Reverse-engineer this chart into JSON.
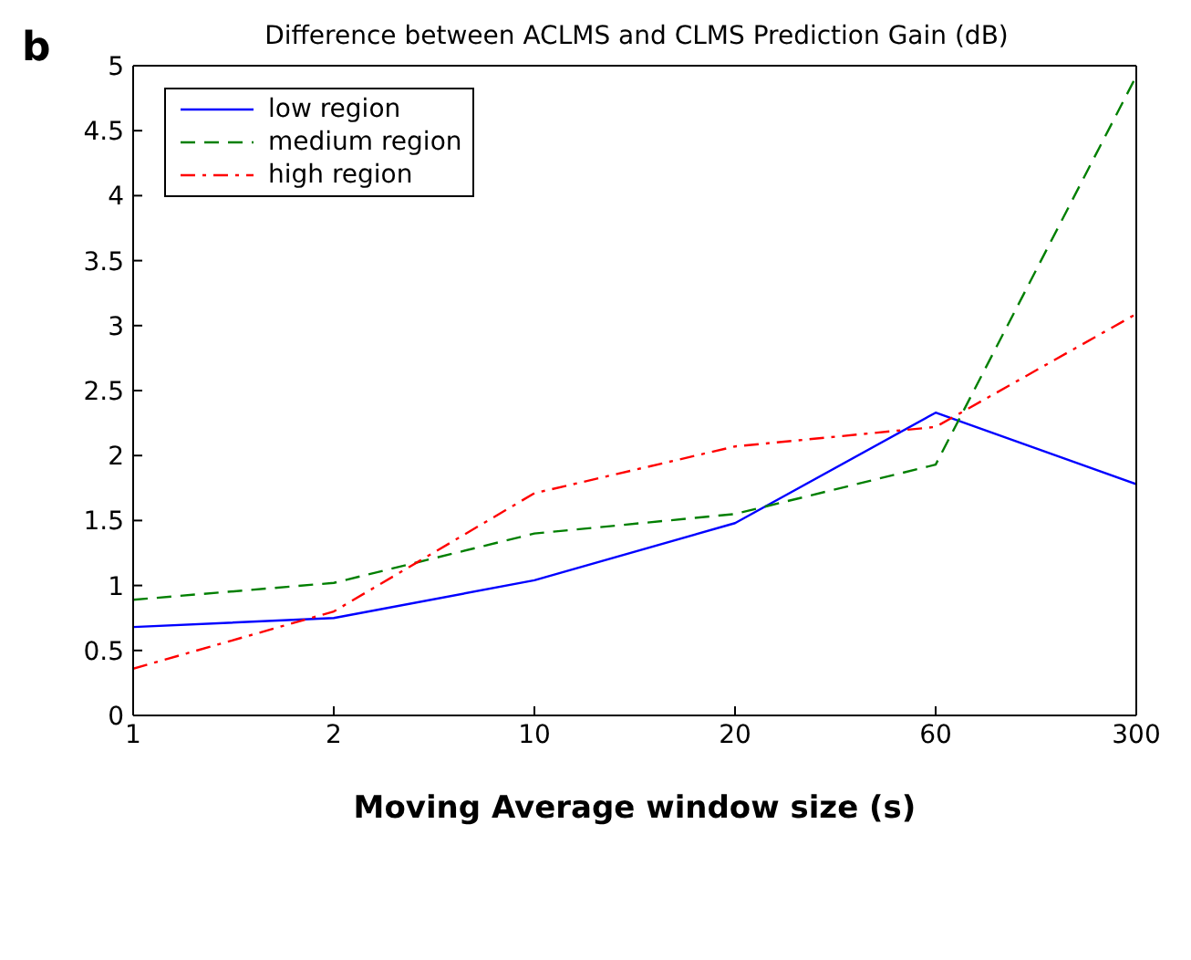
{
  "chart_data": {
    "type": "line",
    "title": "Difference between ACLMS and CLMS Prediction Gain (dB)",
    "xlabel": "Moving Average window size (s)",
    "annotations": [
      "b"
    ],
    "categories": [
      "1",
      "2",
      "10",
      "20",
      "60",
      "300"
    ],
    "series": [
      {
        "name": "low region",
        "color": "#0000ff",
        "line_style": "solid",
        "values": [
          0.68,
          0.75,
          1.04,
          1.48,
          2.33,
          1.78
        ]
      },
      {
        "name": "medium region",
        "color": "#007f00",
        "line_style": "dashed",
        "values": [
          0.89,
          1.02,
          1.4,
          1.55,
          1.93,
          4.92
        ]
      },
      {
        "name": "high region",
        "color": "#ff0000",
        "line_style": "dashdot",
        "values": [
          0.36,
          0.8,
          1.71,
          2.07,
          2.22,
          3.09
        ]
      }
    ],
    "ylim": [
      0,
      5
    ],
    "yticks": [
      0,
      0.5,
      1,
      1.5,
      2,
      2.5,
      3,
      3.5,
      4,
      4.5,
      5
    ],
    "legend": "top left",
    "marker": "none"
  }
}
